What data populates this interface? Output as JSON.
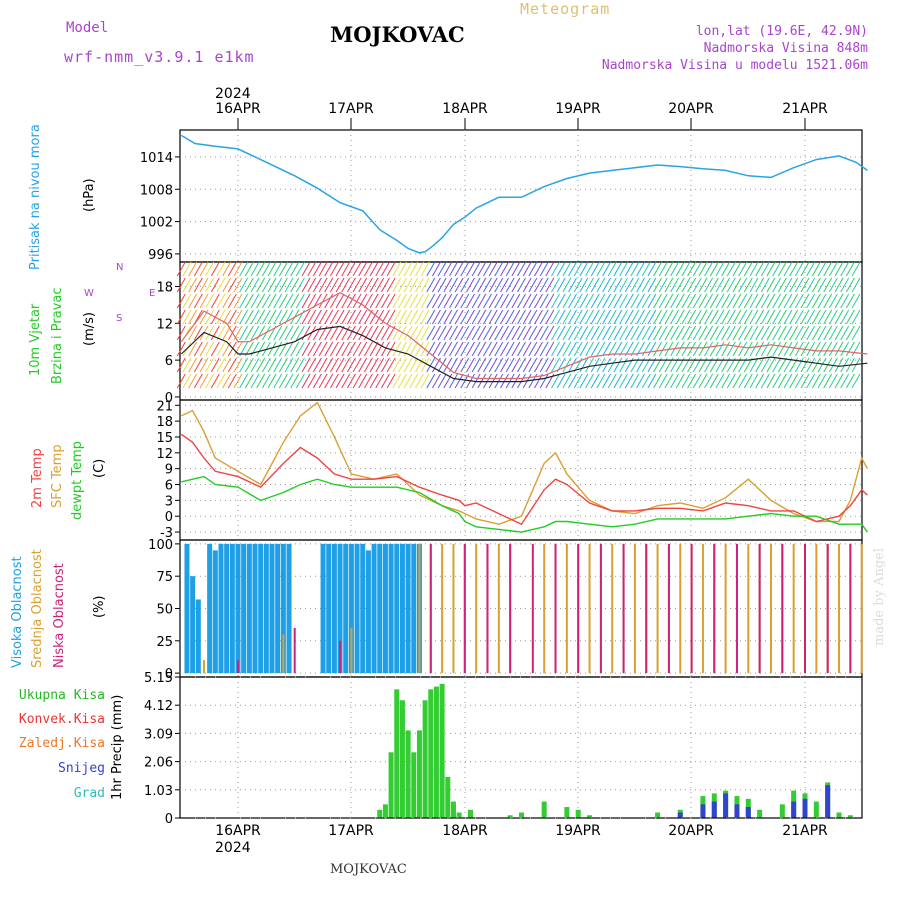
{
  "header": {
    "model_label": "Model",
    "model_name": "wrf-nmm_v3.9.1 e1km",
    "station": "MOJKOVAC",
    "meteogram": "Meteogram",
    "lonlat": "lon,lat (19.6E, 42.9N)",
    "elevation": "Nadmorska Visina 848m",
    "model_elevation": "Nadmorska Visina u modelu 1521.06m",
    "bottom_station": "MOJKOVAC",
    "credit": "made by Angel"
  },
  "axis": {
    "top_year": "2024",
    "bottom_year": "2024",
    "dates": [
      "16APR",
      "17APR",
      "18APR",
      "19APR",
      "20APR",
      "21APR"
    ]
  },
  "colors": {
    "pressure": "#29a3e6",
    "t2m": "#ee4444",
    "tsfc": "#d9a030",
    "dewpt": "#22cc22",
    "cloud_high": "#1e9fe6",
    "cloud_mid": "#d9a030",
    "cloud_low": "#cc2277",
    "precip_total": "#33cc33",
    "precip_conv": "#ee3333",
    "precip_frozen": "#ee7722",
    "precip_snow": "#3344cc",
    "precip_graupel": "#33bbbb",
    "axis_labels_purple": "#aa44cc"
  },
  "panels": {
    "pressure": {
      "label1": "Pritisak na nivou mora",
      "label2": "(hPa)"
    },
    "wind": {
      "label1": "10m Vjetar",
      "label2": "Brzina i Pravac",
      "label3": "(m/s)",
      "compass_n": "N",
      "compass_s": "S",
      "compass_w": "W",
      "compass_e": "E"
    },
    "temp": {
      "label1": "2m Temp",
      "label2": "SFC Temp",
      "label3": "dewpt Temp",
      "label4": "(C)"
    },
    "cloud": {
      "label1": "Visoka Oblacnost",
      "label2": "Srednja Oblacnost",
      "label3": "Niska Oblacnost",
      "label4": "(%)"
    },
    "precip": {
      "label1": "Ukupna Kisa",
      "label2": "Konvek.Kisa",
      "label3": "Zaledj.Kisa",
      "label4": "Snijeg",
      "label5": "Grad",
      "label6": "1hr Precip (mm)"
    }
  },
  "chart_data": [
    {
      "type": "line",
      "name": "pressure",
      "x_days": [
        0,
        0.12,
        0.3,
        0.5,
        0.75,
        1.0,
        1.2,
        1.4,
        1.6,
        1.75,
        1.9,
        2.0,
        2.1,
        2.15,
        2.22,
        2.3,
        2.4,
        2.5,
        2.6,
        2.7,
        2.8,
        3.0,
        3.2,
        3.4,
        3.6,
        3.8,
        4.0,
        4.2,
        4.4,
        4.6,
        4.8,
        5.0,
        5.2,
        5.4,
        5.6,
        5.8,
        5.95,
        6.05
      ],
      "values": [
        1018,
        1016.5,
        1016,
        1015.5,
        1013,
        1010.5,
        1008.2,
        1005.5,
        1004,
        1000.5,
        998.5,
        997,
        996.2,
        996.4,
        997.5,
        999,
        1001.5,
        1002.8,
        1004.5,
        1005.5,
        1006.5,
        1006.5,
        1008.5,
        1010,
        1011,
        1011.5,
        1012,
        1012.5,
        1012.2,
        1011.8,
        1011.5,
        1010.5,
        1010.2,
        1012,
        1013.5,
        1014.2,
        1013,
        1011.5
      ],
      "yticks": [
        996,
        1002,
        1008,
        1014
      ],
      "ylim": [
        994.5,
        1019
      ]
    },
    {
      "type": "line",
      "name": "wind",
      "x_days": [
        0,
        0.2,
        0.4,
        0.5,
        0.6,
        0.8,
        1.0,
        1.2,
        1.4,
        1.6,
        1.8,
        2.0,
        2.2,
        2.4,
        2.6,
        2.8,
        3.0,
        3.2,
        3.4,
        3.6,
        3.8,
        4.0,
        4.2,
        4.4,
        4.6,
        4.8,
        5.0,
        5.2,
        5.4,
        5.6,
        5.8,
        6.05
      ],
      "speed": [
        7,
        10.5,
        9,
        7,
        7,
        8,
        9,
        11,
        11.5,
        10,
        8,
        7,
        5,
        3,
        2.5,
        2.5,
        2.5,
        3,
        4,
        5,
        5.5,
        6,
        6,
        6,
        6,
        6,
        6,
        6.5,
        6,
        5.5,
        5,
        5.5
      ],
      "gust": [
        9,
        14,
        12,
        9,
        9,
        11,
        13,
        15,
        17,
        15,
        12,
        10,
        7,
        4,
        3,
        3,
        3,
        3.5,
        5,
        6.5,
        7,
        7,
        7.5,
        8,
        8,
        8.5,
        8,
        8.5,
        8,
        7.5,
        7.5,
        7
      ],
      "yticks": [
        0,
        6,
        12,
        18
      ],
      "ylim": [
        -0.5,
        22
      ]
    },
    {
      "type": "line",
      "name": "temperature",
      "x_days": [
        0,
        0.1,
        0.2,
        0.3,
        0.5,
        0.7,
        0.9,
        1.05,
        1.2,
        1.35,
        1.5,
        1.7,
        1.9,
        2.1,
        2.3,
        2.45,
        2.5,
        2.6,
        2.8,
        3.0,
        3.2,
        3.3,
        3.4,
        3.6,
        3.8,
        4.0,
        4.2,
        4.4,
        4.6,
        4.8,
        5.0,
        5.2,
        5.4,
        5.6,
        5.8,
        5.9,
        6.0,
        6.05
      ],
      "t2m": [
        15.5,
        14,
        11,
        8.5,
        7.5,
        5.5,
        10,
        13,
        11,
        8,
        7,
        7,
        7.5,
        5.5,
        4,
        3,
        2,
        2.5,
        0.5,
        -1.5,
        5,
        7,
        6,
        2.5,
        1,
        1,
        1.5,
        1.5,
        1,
        2.5,
        2,
        1,
        1,
        -1,
        0,
        2,
        5,
        4
      ],
      "tsfc": [
        19,
        20,
        16,
        11,
        8.5,
        6,
        14,
        19,
        21.5,
        15,
        8,
        7,
        8,
        4,
        2,
        1,
        0.5,
        -0.5,
        -1.5,
        0,
        10,
        12,
        8,
        3,
        1,
        0.5,
        2,
        2.5,
        1.5,
        3.5,
        7,
        3,
        0.5,
        -1,
        -1,
        3,
        11,
        9
      ],
      "dewpt": [
        6.5,
        7,
        7.5,
        6,
        5.5,
        3,
        4.5,
        6,
        7,
        6,
        5.5,
        5.5,
        5.5,
        4.5,
        2,
        0.5,
        -1,
        -2,
        -2.5,
        -3,
        -2,
        -1,
        -1,
        -1.5,
        -2,
        -1.5,
        -0.5,
        -0.5,
        -0.5,
        -0.5,
        0,
        0.5,
        0,
        0,
        -1.5,
        -1.5,
        -1.5,
        -3
      ],
      "yticks": [
        -3,
        0,
        3,
        6,
        9,
        12,
        15,
        18,
        21
      ],
      "ylim": [
        -4.5,
        22
      ]
    },
    {
      "type": "bar",
      "name": "cloud_cover",
      "series": [
        {
          "name": "high",
          "x_days": [
            0.05,
            0.1,
            0.15,
            0.25,
            0.3,
            0.35,
            0.4,
            0.45,
            0.5,
            0.55,
            0.6,
            0.65,
            0.7,
            0.75,
            0.8,
            0.85,
            0.9,
            0.95,
            1.25,
            1.3,
            1.35,
            1.4,
            1.45,
            1.5,
            1.55,
            1.6,
            1.65,
            1.7,
            1.75,
            1.8,
            1.85,
            1.9,
            1.95,
            2.0,
            2.05,
            2.1
          ],
          "values": [
            100,
            75,
            57,
            100,
            95,
            100,
            100,
            100,
            100,
            100,
            100,
            100,
            100,
            100,
            100,
            100,
            100,
            100,
            100,
            100,
            100,
            100,
            100,
            100,
            100,
            100,
            95,
            100,
            100,
            100,
            100,
            100,
            100,
            100,
            100,
            100
          ]
        },
        {
          "name": "mid",
          "x_days": [
            0.2,
            0.9,
            1.5,
            2.1,
            2.2,
            2.3,
            2.4,
            2.5,
            2.6,
            2.7,
            2.8,
            2.9,
            3.2,
            3.3,
            3.4,
            3.5,
            3.6,
            3.7,
            3.8,
            3.9,
            4.0,
            4.1,
            4.2,
            4.3,
            4.4,
            4.5,
            4.6,
            4.7,
            4.8,
            4.9,
            5.0,
            5.1,
            5.2,
            5.3,
            5.4,
            5.5,
            5.6,
            5.7,
            5.8,
            5.9,
            6.0
          ],
          "values": [
            10,
            30,
            35,
            100,
            100,
            100,
            100,
            100,
            100,
            100,
            100,
            100,
            100,
            100,
            100,
            100,
            100,
            100,
            100,
            100,
            100,
            100,
            100,
            100,
            100,
            100,
            100,
            100,
            100,
            100,
            100,
            100,
            100,
            100,
            100,
            100,
            100,
            100,
            100,
            100,
            100
          ]
        },
        {
          "name": "low",
          "x_days": [
            0.5,
            1.0,
            1.4,
            2.2,
            2.5,
            2.7,
            2.9,
            3.1,
            3.3,
            3.5,
            3.7,
            3.9,
            4.1,
            4.3,
            4.5,
            4.7,
            4.9,
            5.1,
            5.3,
            5.5,
            5.7,
            5.9
          ],
          "values": [
            10,
            35,
            25,
            100,
            100,
            100,
            100,
            100,
            100,
            100,
            100,
            100,
            100,
            100,
            100,
            100,
            100,
            100,
            100,
            100,
            100,
            100
          ]
        }
      ],
      "yticks": [
        0,
        25,
        50,
        75,
        100
      ],
      "ylim": [
        -3,
        103
      ]
    },
    {
      "type": "bar",
      "name": "precip_1hr",
      "series": [
        {
          "name": "total",
          "x_days": [
            1.75,
            1.8,
            1.85,
            1.9,
            1.95,
            2.0,
            2.05,
            2.1,
            2.15,
            2.2,
            2.25,
            2.3,
            2.35,
            2.4,
            2.45,
            2.55,
            2.9,
            3.0,
            3.2,
            3.4,
            3.5,
            3.6,
            4.2,
            4.4,
            4.6,
            4.7,
            4.8,
            4.9,
            5.0,
            5.1,
            5.3,
            5.4,
            5.5,
            5.6,
            5.7,
            5.8,
            5.9
          ],
          "values": [
            0.3,
            0.5,
            2.4,
            4.7,
            4.3,
            3.2,
            2.4,
            3.2,
            4.3,
            4.7,
            4.8,
            4.9,
            1.5,
            0.6,
            0.2,
            0.3,
            0.1,
            0.2,
            0.6,
            0.4,
            0.3,
            0.1,
            0.2,
            0.3,
            0.8,
            0.9,
            1.0,
            0.8,
            0.7,
            0.3,
            0.5,
            1.0,
            0.9,
            0.6,
            1.3,
            0.2,
            0.1
          ]
        },
        {
          "name": "snow",
          "x_days": [
            4.4,
            4.6,
            4.7,
            4.8,
            4.9,
            5.0,
            5.4,
            5.5,
            5.7
          ],
          "values": [
            0.2,
            0.5,
            0.6,
            0.9,
            0.5,
            0.4,
            0.6,
            0.7,
            1.2
          ]
        }
      ],
      "yticks": [
        0,
        1.03,
        2.06,
        3.09,
        4.12,
        5.15
      ],
      "ylim": [
        0,
        5.15
      ]
    }
  ]
}
